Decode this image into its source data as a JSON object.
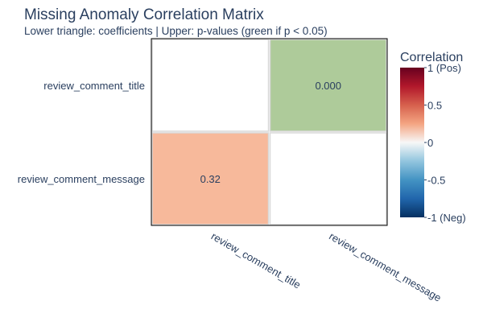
{
  "title": "Missing Anomaly Correlation Matrix",
  "subtitle": "Lower triangle: coefficients | Upper: p-values (green if p < 0.05)",
  "chart_data": {
    "type": "heatmap",
    "variables": [
      "review_comment_title",
      "review_comment_message"
    ],
    "cells": [
      {
        "row": "review_comment_title",
        "col": "review_comment_title",
        "kind": "diagonal",
        "value": null,
        "label": "",
        "color": "#ffffff"
      },
      {
        "row": "review_comment_title",
        "col": "review_comment_message",
        "kind": "p-value",
        "value": 0.0,
        "label": "0.000",
        "color": "#aecb9a"
      },
      {
        "row": "review_comment_message",
        "col": "review_comment_title",
        "kind": "coefficient",
        "value": 0.32,
        "label": "0.32",
        "color": "#f7b99b"
      },
      {
        "row": "review_comment_message",
        "col": "review_comment_message",
        "kind": "diagonal",
        "value": null,
        "label": "",
        "color": "#ffffff"
      }
    ],
    "colorbar": {
      "title": "Correlation",
      "range": [
        -1,
        1
      ],
      "colorscale": "RdBu",
      "ticks": [
        {
          "value": 1,
          "label": "1 (Pos)"
        },
        {
          "value": 0.5,
          "label": "0.5"
        },
        {
          "value": 0,
          "label": "0"
        },
        {
          "value": -0.5,
          "label": "-0.5"
        },
        {
          "value": -1,
          "label": "-1 (Neg)"
        }
      ]
    }
  }
}
